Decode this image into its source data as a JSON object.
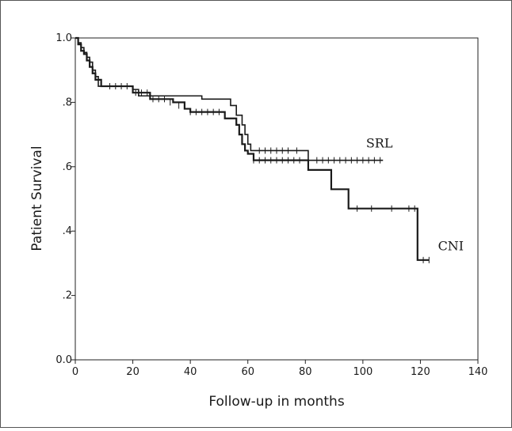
{
  "chart_data": {
    "type": "line",
    "step": true,
    "xlabel": "Follow-up in months",
    "ylabel": "Patient Survival",
    "xlim": [
      0,
      140
    ],
    "ylim": [
      0,
      1
    ],
    "x_ticks": [
      "0",
      "20",
      "40",
      "60",
      "80",
      "100",
      "120",
      "140"
    ],
    "y_ticks": [
      "0.0",
      ".2",
      ".4",
      ".6",
      ".8",
      "1.0"
    ],
    "grid": false,
    "series": [
      {
        "name": "SRL",
        "points": [
          [
            0,
            1.0
          ],
          [
            1,
            0.985
          ],
          [
            2,
            0.97
          ],
          [
            3,
            0.955
          ],
          [
            4,
            0.94
          ],
          [
            5,
            0.925
          ],
          [
            6,
            0.9
          ],
          [
            7,
            0.88
          ],
          [
            8,
            0.85
          ],
          [
            16,
            0.85
          ],
          [
            20,
            0.84
          ],
          [
            22,
            0.82
          ],
          [
            40,
            0.82
          ],
          [
            44,
            0.81
          ],
          [
            53,
            0.81
          ],
          [
            54,
            0.79
          ],
          [
            56,
            0.76
          ],
          [
            58,
            0.73
          ],
          [
            59,
            0.7
          ],
          [
            60,
            0.67
          ],
          [
            61,
            0.65
          ],
          [
            64,
            0.65
          ],
          [
            80,
            0.65
          ],
          [
            81,
            0.62
          ],
          [
            107,
            0.62
          ]
        ],
        "censored": [
          [
            64,
            0.65
          ],
          [
            66,
            0.65
          ],
          [
            68,
            0.65
          ],
          [
            70,
            0.65
          ],
          [
            72,
            0.65
          ],
          [
            74,
            0.65
          ],
          [
            77,
            0.65
          ],
          [
            84,
            0.62
          ],
          [
            86,
            0.62
          ],
          [
            88,
            0.62
          ],
          [
            90,
            0.62
          ],
          [
            92,
            0.62
          ],
          [
            94,
            0.62
          ],
          [
            96,
            0.62
          ],
          [
            98,
            0.62
          ],
          [
            100,
            0.62
          ],
          [
            102,
            0.62
          ],
          [
            104,
            0.62
          ],
          [
            106,
            0.62
          ]
        ]
      },
      {
        "name": "CNI",
        "points": [
          [
            0,
            1.0
          ],
          [
            1,
            0.98
          ],
          [
            2,
            0.96
          ],
          [
            3,
            0.95
          ],
          [
            4,
            0.93
          ],
          [
            5,
            0.91
          ],
          [
            6,
            0.89
          ],
          [
            7,
            0.87
          ],
          [
            9,
            0.85
          ],
          [
            19,
            0.85
          ],
          [
            20,
            0.83
          ],
          [
            26,
            0.81
          ],
          [
            30,
            0.81
          ],
          [
            34,
            0.8
          ],
          [
            38,
            0.78
          ],
          [
            40,
            0.77
          ],
          [
            50,
            0.77
          ],
          [
            52,
            0.75
          ],
          [
            56,
            0.73
          ],
          [
            57,
            0.7
          ],
          [
            58,
            0.67
          ],
          [
            59,
            0.65
          ],
          [
            60,
            0.64
          ],
          [
            62,
            0.62
          ],
          [
            81,
            0.62
          ],
          [
            81,
            0.59
          ],
          [
            89,
            0.59
          ],
          [
            89,
            0.53
          ],
          [
            95,
            0.53
          ],
          [
            95,
            0.47
          ],
          [
            119,
            0.47
          ],
          [
            119,
            0.31
          ],
          [
            123,
            0.31
          ]
        ],
        "censored": [
          [
            12,
            0.85
          ],
          [
            14,
            0.85
          ],
          [
            16,
            0.85
          ],
          [
            18,
            0.85
          ],
          [
            21,
            0.83
          ],
          [
            23,
            0.83
          ],
          [
            25,
            0.83
          ],
          [
            27,
            0.81
          ],
          [
            29,
            0.81
          ],
          [
            31,
            0.81
          ],
          [
            33,
            0.8
          ],
          [
            36,
            0.79
          ],
          [
            40,
            0.77
          ],
          [
            42,
            0.77
          ],
          [
            44,
            0.77
          ],
          [
            46,
            0.77
          ],
          [
            48,
            0.77
          ],
          [
            50,
            0.77
          ],
          [
            62,
            0.62
          ],
          [
            64,
            0.62
          ],
          [
            66,
            0.62
          ],
          [
            68,
            0.62
          ],
          [
            70,
            0.62
          ],
          [
            72,
            0.62
          ],
          [
            74,
            0.62
          ],
          [
            76,
            0.62
          ],
          [
            78,
            0.62
          ],
          [
            98,
            0.47
          ],
          [
            103,
            0.47
          ],
          [
            110,
            0.47
          ],
          [
            116,
            0.47
          ],
          [
            118,
            0.47
          ],
          [
            121,
            0.31
          ],
          [
            123,
            0.31
          ]
        ]
      }
    ],
    "annotations": [
      {
        "text": "SRL",
        "x": 100,
        "y": 0.66
      },
      {
        "text": "CNI",
        "x": 125,
        "y": 0.34
      }
    ]
  }
}
